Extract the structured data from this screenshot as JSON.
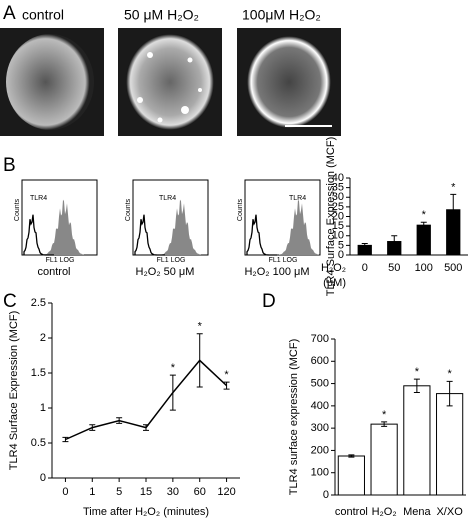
{
  "images": {
    "panel_label": "A",
    "captions": [
      "control",
      "50 μM H₂O₂",
      "100μM H₂O₂"
    ]
  },
  "histograms": {
    "panel_label": "B",
    "marker_label": "TLR4",
    "y_label": "Counts",
    "x_label": "FL1 LOG",
    "captions": [
      "control",
      "H₂O₂ 50 μM",
      "H₂O₂ 100 μM"
    ]
  },
  "chart_data": [
    {
      "type": "bar",
      "ylabel": "TLR4 Surface Expression (MCF)",
      "xlabel": [
        "H₂O₂",
        "(μM)"
      ],
      "categories": [
        "0",
        "50",
        "100",
        "500"
      ],
      "values": [
        5,
        7,
        15.5,
        23.5
      ],
      "errors": [
        1,
        3,
        1.5,
        8
      ],
      "significant": [
        false,
        false,
        true,
        true
      ],
      "significance_label": "*",
      "color": "#000000",
      "ylim": [
        0,
        40
      ],
      "yticks": [
        0,
        5,
        10,
        15,
        20,
        25,
        30,
        35,
        40
      ]
    },
    {
      "type": "line",
      "panel_label": "C",
      "ylabel": "TLR4 Surface Expression (MCF)",
      "xlabel": "Time after H₂O₂ (minutes)",
      "categories": [
        "0",
        "1",
        "5",
        "15",
        "30",
        "60",
        "120"
      ],
      "values": [
        0.55,
        0.72,
        0.82,
        0.72,
        1.22,
        1.68,
        1.32
      ],
      "errors": [
        0.03,
        0.04,
        0.04,
        0.04,
        0.25,
        0.38,
        0.05
      ],
      "significant": [
        false,
        false,
        false,
        false,
        true,
        true,
        true
      ],
      "significance_label": "*",
      "color": "#000000",
      "ylim": [
        0,
        2.5
      ],
      "yticks": [
        0,
        0.5,
        1,
        1.5,
        2,
        2.5
      ]
    },
    {
      "type": "bar",
      "panel_label": "D",
      "ylabel": "TLR4 surface expression (MCF)",
      "categories": [
        "control",
        "H₂O₂",
        "Mena",
        "X/XO"
      ],
      "values": [
        175,
        318,
        490,
        455
      ],
      "errors": [
        5,
        10,
        30,
        55
      ],
      "significant": [
        false,
        true,
        true,
        true
      ],
      "significance_label": "*",
      "color": "#ffffff",
      "ylim": [
        0,
        700
      ],
      "yticks": [
        0,
        100,
        200,
        300,
        400,
        500,
        600,
        700
      ]
    }
  ]
}
